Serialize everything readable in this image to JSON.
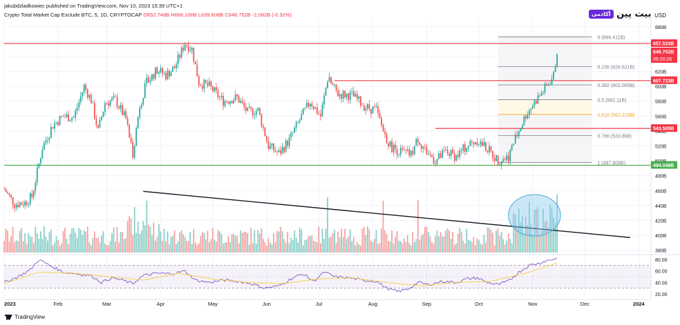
{
  "header": {
    "publisher": "jakubdzladkowiec published on TradingView.com, Nov 10, 2023 15:39 UTC+1",
    "symbol": "Crypto Total Market Cap Exclude BTC, 5, 1D, CRYPTOCAP",
    "o": "O652.748B",
    "h": "H666.106B",
    "l": "L639.608B",
    "c": "C648.752B",
    "chg": "-2.082B (-0.32%)",
    "currency": "USD"
  },
  "brand": {
    "name": "بیت پین",
    "tag": "آکادمی"
  },
  "footer": {
    "text": "TradingView"
  },
  "colors": {
    "up": "#26a69a",
    "down": "#ef5350",
    "resistance": "#f23645",
    "support": "#4caf50",
    "rsi": "#7e57c2",
    "rsi_ma": "#f4d03f",
    "ellipse": "#8ecdf0"
  },
  "chart_data": {
    "type": "candlestick",
    "price_axis": {
      "ticks": [
        "680B",
        "660B",
        "640B",
        "620B",
        "600B",
        "580B",
        "560B",
        "540B",
        "520B",
        "500B",
        "480B",
        "460B",
        "440B",
        "420B",
        "400B",
        "380B"
      ],
      "tick_values": [
        680,
        660,
        640,
        620,
        600,
        580,
        560,
        540,
        520,
        500,
        480,
        460,
        440,
        420,
        400,
        380
      ],
      "range": [
        375,
        690
      ]
    },
    "time_axis": {
      "labels": [
        "2023",
        "Feb",
        "Mar",
        "Apr",
        "May",
        "Jun",
        "Jul",
        "Aug",
        "Sep",
        "Oct",
        "Nov",
        "Dec",
        "2024"
      ],
      "label_days": [
        0,
        31,
        59,
        90,
        120,
        151,
        181,
        212,
        243,
        273,
        304,
        334,
        365
      ]
    },
    "price_labels": [
      {
        "value": 657.533,
        "text": "657.533B",
        "color": "#f23645"
      },
      {
        "value": 648.752,
        "text": "648.752B",
        "sub": "09:20:26",
        "color": "#f23645"
      },
      {
        "value": 607.723,
        "text": "607.723B",
        "color": "#f23645"
      },
      {
        "value": 543.505,
        "text": "543.505B",
        "color": "#f23645"
      },
      {
        "value": 494.048,
        "text": "494.048B",
        "color": "#4caf50"
      }
    ],
    "horizontal_levels": [
      {
        "value": 657.533,
        "from_day": 0,
        "color": "#f23645"
      },
      {
        "value": 607.723,
        "from_day": 190,
        "color": "#f23645"
      },
      {
        "value": 543.505,
        "from_day": 248,
        "color": "#f23645"
      },
      {
        "value": 494.048,
        "from_day": 0,
        "color": "#4caf50"
      }
    ],
    "fibonacci": {
      "from_day": 284,
      "to_day": 338,
      "levels": [
        {
          "ratio": "0",
          "price": "666.411B",
          "value": 666.411,
          "color": "#787b86"
        },
        {
          "ratio": "0.236",
          "price": "626.621B",
          "value": 626.621,
          "color": "#787b86"
        },
        {
          "ratio": "0.382",
          "price": "602.005B",
          "value": 602.005,
          "color": "#787b86"
        },
        {
          "ratio": "0.5",
          "price": "582.11B",
          "value": 582.11,
          "color": "#787b86"
        },
        {
          "ratio": "0.618",
          "price": "562.215B",
          "value": 562.215,
          "color": "#f5a623"
        },
        {
          "ratio": "0.786",
          "price": "533.898",
          "value": 533.898,
          "color": "#787b86"
        },
        {
          "ratio": "1",
          "price": "497.809B",
          "value": 497.809,
          "color": "#787b86"
        }
      ]
    },
    "trendline": {
      "from": {
        "day": 80,
        "value": 459
      },
      "to": {
        "day": 360,
        "value": 397
      }
    },
    "anchors": [
      {
        "day": 0,
        "value": 462
      },
      {
        "day": 6,
        "value": 442
      },
      {
        "day": 12,
        "value": 444
      },
      {
        "day": 16,
        "value": 452
      },
      {
        "day": 22,
        "value": 518
      },
      {
        "day": 28,
        "value": 548
      },
      {
        "day": 34,
        "value": 560
      },
      {
        "day": 40,
        "value": 558
      },
      {
        "day": 46,
        "value": 600
      },
      {
        "day": 50,
        "value": 582
      },
      {
        "day": 54,
        "value": 540
      },
      {
        "day": 58,
        "value": 578
      },
      {
        "day": 64,
        "value": 582
      },
      {
        "day": 70,
        "value": 556
      },
      {
        "day": 74,
        "value": 510
      },
      {
        "day": 78,
        "value": 575
      },
      {
        "day": 82,
        "value": 605
      },
      {
        "day": 88,
        "value": 622
      },
      {
        "day": 93,
        "value": 615
      },
      {
        "day": 98,
        "value": 625
      },
      {
        "day": 104,
        "value": 658
      },
      {
        "day": 108,
        "value": 650
      },
      {
        "day": 112,
        "value": 605
      },
      {
        "day": 118,
        "value": 600
      },
      {
        "day": 126,
        "value": 580
      },
      {
        "day": 134,
        "value": 585
      },
      {
        "day": 140,
        "value": 565
      },
      {
        "day": 146,
        "value": 568
      },
      {
        "day": 152,
        "value": 520
      },
      {
        "day": 158,
        "value": 510
      },
      {
        "day": 164,
        "value": 528
      },
      {
        "day": 170,
        "value": 555
      },
      {
        "day": 176,
        "value": 580
      },
      {
        "day": 182,
        "value": 560
      },
      {
        "day": 186,
        "value": 610
      },
      {
        "day": 192,
        "value": 590
      },
      {
        "day": 200,
        "value": 588
      },
      {
        "day": 208,
        "value": 572
      },
      {
        "day": 214,
        "value": 568
      },
      {
        "day": 218,
        "value": 540
      },
      {
        "day": 222,
        "value": 520
      },
      {
        "day": 228,
        "value": 512
      },
      {
        "day": 234,
        "value": 508
      },
      {
        "day": 238,
        "value": 530
      },
      {
        "day": 242,
        "value": 515
      },
      {
        "day": 248,
        "value": 500
      },
      {
        "day": 254,
        "value": 512
      },
      {
        "day": 260,
        "value": 506
      },
      {
        "day": 266,
        "value": 520
      },
      {
        "day": 272,
        "value": 528
      },
      {
        "day": 278,
        "value": 516
      },
      {
        "day": 284,
        "value": 500
      },
      {
        "day": 290,
        "value": 506
      },
      {
        "day": 294,
        "value": 530
      },
      {
        "day": 300,
        "value": 562
      },
      {
        "day": 306,
        "value": 582
      },
      {
        "day": 312,
        "value": 600
      },
      {
        "day": 316,
        "value": 614
      },
      {
        "day": 318,
        "value": 648
      }
    ],
    "volume_highlight": {
      "from_day": 290,
      "to_day": 320
    },
    "rsi": {
      "levels": [
        80,
        60,
        40,
        20
      ],
      "tick_labels": [
        "80.00",
        "60.00",
        "40.00",
        "20.00"
      ],
      "band": [
        30,
        70
      ],
      "range": [
        15,
        85
      ],
      "anchors": [
        {
          "day": 0,
          "value": 40
        },
        {
          "day": 8,
          "value": 50
        },
        {
          "day": 15,
          "value": 62
        },
        {
          "day": 20,
          "value": 80
        },
        {
          "day": 26,
          "value": 70
        },
        {
          "day": 34,
          "value": 58
        },
        {
          "day": 42,
          "value": 55
        },
        {
          "day": 50,
          "value": 52
        },
        {
          "day": 56,
          "value": 40
        },
        {
          "day": 62,
          "value": 48
        },
        {
          "day": 68,
          "value": 44
        },
        {
          "day": 74,
          "value": 38
        },
        {
          "day": 80,
          "value": 52
        },
        {
          "day": 88,
          "value": 56
        },
        {
          "day": 96,
          "value": 55
        },
        {
          "day": 104,
          "value": 60
        },
        {
          "day": 110,
          "value": 44
        },
        {
          "day": 118,
          "value": 40
        },
        {
          "day": 126,
          "value": 44
        },
        {
          "day": 134,
          "value": 42
        },
        {
          "day": 142,
          "value": 38
        },
        {
          "day": 150,
          "value": 30
        },
        {
          "day": 158,
          "value": 34
        },
        {
          "day": 166,
          "value": 48
        },
        {
          "day": 172,
          "value": 55
        },
        {
          "day": 178,
          "value": 42
        },
        {
          "day": 184,
          "value": 58
        },
        {
          "day": 190,
          "value": 50
        },
        {
          "day": 198,
          "value": 48
        },
        {
          "day": 206,
          "value": 44
        },
        {
          "day": 214,
          "value": 42
        },
        {
          "day": 220,
          "value": 30
        },
        {
          "day": 226,
          "value": 24
        },
        {
          "day": 232,
          "value": 28
        },
        {
          "day": 238,
          "value": 40
        },
        {
          "day": 244,
          "value": 36
        },
        {
          "day": 252,
          "value": 42
        },
        {
          "day": 260,
          "value": 40
        },
        {
          "day": 266,
          "value": 46
        },
        {
          "day": 272,
          "value": 48
        },
        {
          "day": 278,
          "value": 40
        },
        {
          "day": 284,
          "value": 36
        },
        {
          "day": 290,
          "value": 42
        },
        {
          "day": 296,
          "value": 58
        },
        {
          "day": 302,
          "value": 70
        },
        {
          "day": 308,
          "value": 74
        },
        {
          "day": 312,
          "value": 78
        },
        {
          "day": 318,
          "value": 82
        }
      ],
      "ma_anchors": [
        {
          "day": 0,
          "value": 38
        },
        {
          "day": 20,
          "value": 58
        },
        {
          "day": 40,
          "value": 56
        },
        {
          "day": 60,
          "value": 50
        },
        {
          "day": 80,
          "value": 44
        },
        {
          "day": 100,
          "value": 56
        },
        {
          "day": 120,
          "value": 46
        },
        {
          "day": 140,
          "value": 40
        },
        {
          "day": 160,
          "value": 38
        },
        {
          "day": 180,
          "value": 46
        },
        {
          "day": 200,
          "value": 48
        },
        {
          "day": 220,
          "value": 40
        },
        {
          "day": 240,
          "value": 34
        },
        {
          "day": 260,
          "value": 40
        },
        {
          "day": 280,
          "value": 42
        },
        {
          "day": 300,
          "value": 56
        },
        {
          "day": 318,
          "value": 74
        }
      ]
    }
  }
}
